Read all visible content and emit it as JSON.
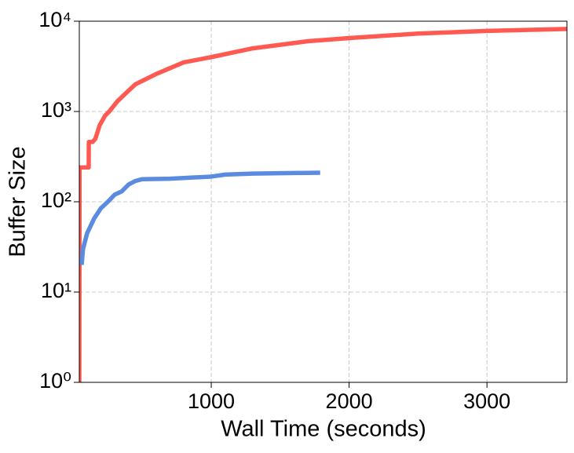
{
  "chart_data": {
    "type": "line",
    "xlabel": "Wall Time (seconds)",
    "ylabel": "Buffer Size",
    "xlim": [
      43,
      3580
    ],
    "ylim": [
      1,
      10000
    ],
    "yscale": "log",
    "grid": true,
    "xticks": [
      1000,
      2000,
      3000
    ],
    "yticks": [
      {
        "value": 1,
        "label": "10⁰"
      },
      {
        "value": 10,
        "label": "10¹"
      },
      {
        "value": 100,
        "label": "10²"
      },
      {
        "value": 1000,
        "label": "10³"
      },
      {
        "value": 10000,
        "label": "10⁴"
      }
    ],
    "series": [
      {
        "color": "#ff5a52",
        "x": [
          43,
          45,
          111,
          112,
          140,
          160,
          190,
          230,
          260,
          320,
          400,
          450,
          600,
          800,
          1000,
          1300,
          1700,
          2000,
          2500,
          3000,
          3580
        ],
        "values": [
          1,
          240,
          240,
          460,
          460,
          500,
          700,
          900,
          1000,
          1300,
          1700,
          2000,
          2600,
          3500,
          4000,
          5000,
          6000,
          6500,
          7300,
          7800,
          8200
        ]
      },
      {
        "color": "#5b8be0",
        "x": [
          60,
          70,
          100,
          150,
          200,
          250,
          300,
          350,
          400,
          450,
          500,
          700,
          1000,
          1100,
          1300,
          1790
        ],
        "values": [
          20,
          30,
          45,
          65,
          85,
          100,
          120,
          130,
          155,
          170,
          178,
          180,
          190,
          200,
          205,
          210
        ]
      }
    ]
  }
}
